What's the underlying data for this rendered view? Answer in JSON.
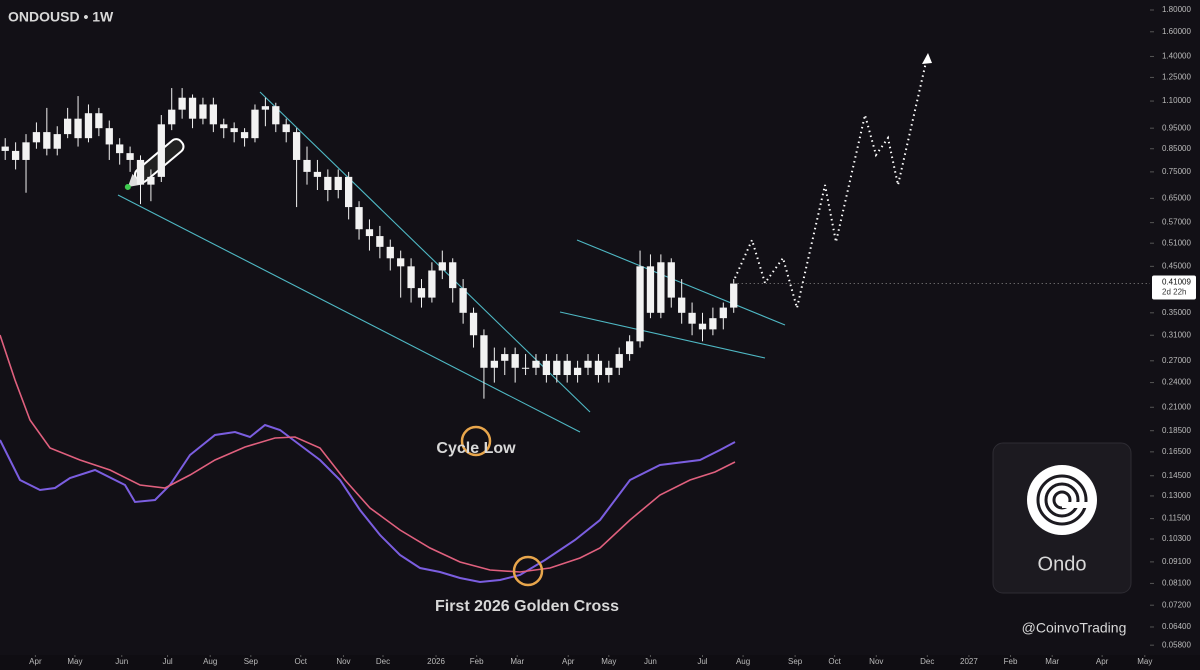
{
  "chart_data": {
    "type": "candlestick",
    "title": "ONDOUSD • 1W",
    "log_scale": true,
    "color": "#f2f2f2",
    "trend_color": "#4fb8c4",
    "ylim": [
      0.055,
      1.9
    ],
    "yticks": [
      {
        "value": 1.8,
        "label": "1.80000"
      },
      {
        "value": 1.6,
        "label": "1.60000"
      },
      {
        "value": 1.4,
        "label": "1.40000"
      },
      {
        "value": 1.25,
        "label": "1.25000"
      },
      {
        "value": 1.1,
        "label": "1.10000"
      },
      {
        "value": 0.95,
        "label": "0.95000"
      },
      {
        "value": 0.85,
        "label": "0.85000"
      },
      {
        "value": 0.75,
        "label": "0.75000"
      },
      {
        "value": 0.65,
        "label": "0.65000"
      },
      {
        "value": 0.57,
        "label": "0.57000"
      },
      {
        "value": 0.51,
        "label": "0.51000"
      },
      {
        "value": 0.45,
        "label": "0.45000"
      },
      {
        "value": 0.35,
        "label": "0.35000"
      },
      {
        "value": 0.31,
        "label": "0.31000"
      },
      {
        "value": 0.27,
        "label": "0.27000"
      },
      {
        "value": 0.24,
        "label": "0.24000"
      },
      {
        "value": 0.21,
        "label": "0.21000"
      },
      {
        "value": 0.185,
        "label": "0.18500"
      },
      {
        "value": 0.165,
        "label": "0.16500"
      },
      {
        "value": 0.145,
        "label": "0.14500"
      },
      {
        "value": 0.13,
        "label": "0.13000"
      },
      {
        "value": 0.115,
        "label": "0.11500"
      },
      {
        "value": 0.103,
        "label": "0.10300"
      },
      {
        "value": 0.091,
        "label": "0.09100"
      },
      {
        "value": 0.081,
        "label": "0.08100"
      },
      {
        "value": 0.072,
        "label": "0.07200"
      },
      {
        "value": 0.064,
        "label": "0.06400"
      },
      {
        "value": 0.058,
        "label": "0.05800"
      }
    ],
    "xlim": [
      -0.5,
      110
    ],
    "xticks": [
      {
        "value": 2.9,
        "label": "Apr"
      },
      {
        "value": 6.7,
        "label": "May"
      },
      {
        "value": 11.2,
        "label": "Jun"
      },
      {
        "value": 15.6,
        "label": "Jul"
      },
      {
        "value": 19.7,
        "label": "Aug"
      },
      {
        "value": 23.6,
        "label": "Sep"
      },
      {
        "value": 28.4,
        "label": "Oct"
      },
      {
        "value": 32.5,
        "label": "Nov"
      },
      {
        "value": 36.3,
        "label": "Dec"
      },
      {
        "value": 41.4,
        "label": "2026"
      },
      {
        "value": 45.3,
        "label": "Feb"
      },
      {
        "value": 49.2,
        "label": "Mar"
      },
      {
        "value": 54.1,
        "label": "Apr"
      },
      {
        "value": 58,
        "label": "May"
      },
      {
        "value": 62,
        "label": "Jun"
      },
      {
        "value": 67,
        "label": "Jul"
      },
      {
        "value": 70.9,
        "label": "Aug"
      },
      {
        "value": 75.9,
        "label": "Sep"
      },
      {
        "value": 79.7,
        "label": "Oct"
      },
      {
        "value": 83.7,
        "label": "Nov"
      },
      {
        "value": 88.6,
        "label": "Dec"
      },
      {
        "value": 92.6,
        "label": "2027"
      },
      {
        "value": 96.6,
        "label": "Feb"
      },
      {
        "value": 100.6,
        "label": "Mar"
      },
      {
        "value": 105.4,
        "label": "Apr"
      },
      {
        "value": 109.5,
        "label": "May"
      }
    ],
    "open": [
      0.86,
      0.84,
      0.8,
      0.88,
      0.93,
      0.85,
      0.92,
      1.0,
      0.9,
      1.03,
      0.95,
      0.87,
      0.83,
      0.8,
      0.7,
      0.73,
      0.97,
      1.05,
      1.12,
      1.0,
      1.08,
      0.97,
      0.95,
      0.93,
      0.9,
      1.05,
      1.07,
      0.97,
      0.93,
      0.8,
      0.75,
      0.73,
      0.68,
      0.73,
      0.62,
      0.55,
      0.53,
      0.5,
      0.47,
      0.45,
      0.4,
      0.38,
      0.44,
      0.46,
      0.4,
      0.35,
      0.31,
      0.26,
      0.27,
      0.28,
      0.26,
      0.26,
      0.27,
      0.25,
      0.27,
      0.25,
      0.26,
      0.27,
      0.25,
      0.26,
      0.28,
      0.3,
      0.45,
      0.35,
      0.46,
      0.38,
      0.35,
      0.33,
      0.32,
      0.34,
      0.36
    ],
    "high": [
      0.9,
      0.88,
      0.92,
      0.98,
      1.06,
      0.96,
      1.06,
      1.13,
      1.08,
      1.06,
      0.99,
      0.9,
      0.86,
      0.82,
      0.76,
      1.02,
      1.18,
      1.18,
      1.14,
      1.12,
      1.12,
      1.0,
      0.98,
      0.95,
      1.08,
      1.12,
      1.09,
      1.0,
      0.95,
      0.86,
      0.8,
      0.76,
      0.76,
      0.75,
      0.64,
      0.58,
      0.56,
      0.52,
      0.49,
      0.47,
      0.42,
      0.46,
      0.49,
      0.47,
      0.42,
      0.36,
      0.32,
      0.29,
      0.29,
      0.29,
      0.28,
      0.28,
      0.28,
      0.28,
      0.28,
      0.27,
      0.28,
      0.28,
      0.27,
      0.29,
      0.31,
      0.49,
      0.48,
      0.48,
      0.47,
      0.42,
      0.37,
      0.35,
      0.36,
      0.37,
      0.42
    ],
    "low": [
      0.8,
      0.76,
      0.67,
      0.85,
      0.82,
      0.82,
      0.9,
      0.86,
      0.88,
      0.91,
      0.8,
      0.78,
      0.75,
      0.63,
      0.64,
      0.71,
      0.94,
      1.0,
      0.95,
      0.97,
      0.93,
      0.9,
      0.88,
      0.86,
      0.88,
      0.96,
      0.93,
      0.88,
      0.62,
      0.7,
      0.68,
      0.64,
      0.65,
      0.58,
      0.52,
      0.49,
      0.47,
      0.44,
      0.38,
      0.37,
      0.36,
      0.37,
      0.42,
      0.37,
      0.33,
      0.29,
      0.22,
      0.24,
      0.25,
      0.24,
      0.25,
      0.25,
      0.24,
      0.24,
      0.24,
      0.24,
      0.25,
      0.24,
      0.24,
      0.25,
      0.27,
      0.29,
      0.34,
      0.34,
      0.36,
      0.33,
      0.31,
      0.3,
      0.31,
      0.32,
      0.35
    ],
    "close": [
      0.84,
      0.8,
      0.88,
      0.93,
      0.85,
      0.92,
      1.0,
      0.9,
      1.03,
      0.95,
      0.87,
      0.83,
      0.8,
      0.7,
      0.73,
      0.97,
      1.05,
      1.12,
      1.0,
      1.08,
      0.97,
      0.95,
      0.93,
      0.9,
      1.05,
      1.07,
      0.97,
      0.93,
      0.8,
      0.75,
      0.73,
      0.68,
      0.73,
      0.62,
      0.55,
      0.53,
      0.5,
      0.47,
      0.45,
      0.4,
      0.38,
      0.44,
      0.46,
      0.4,
      0.35,
      0.31,
      0.26,
      0.27,
      0.28,
      0.26,
      0.26,
      0.27,
      0.25,
      0.27,
      0.25,
      0.26,
      0.27,
      0.25,
      0.26,
      0.28,
      0.3,
      0.45,
      0.35,
      0.46,
      0.38,
      0.35,
      0.33,
      0.32,
      0.34,
      0.36,
      0.41
    ],
    "last_price": 0.41009,
    "countdown": "2d 22h",
    "annotations": [
      "Cycle Low",
      "First 2026 Golden Cross"
    ],
    "logo_label": "Ondo",
    "watermark": "@CoinvoTrading"
  }
}
